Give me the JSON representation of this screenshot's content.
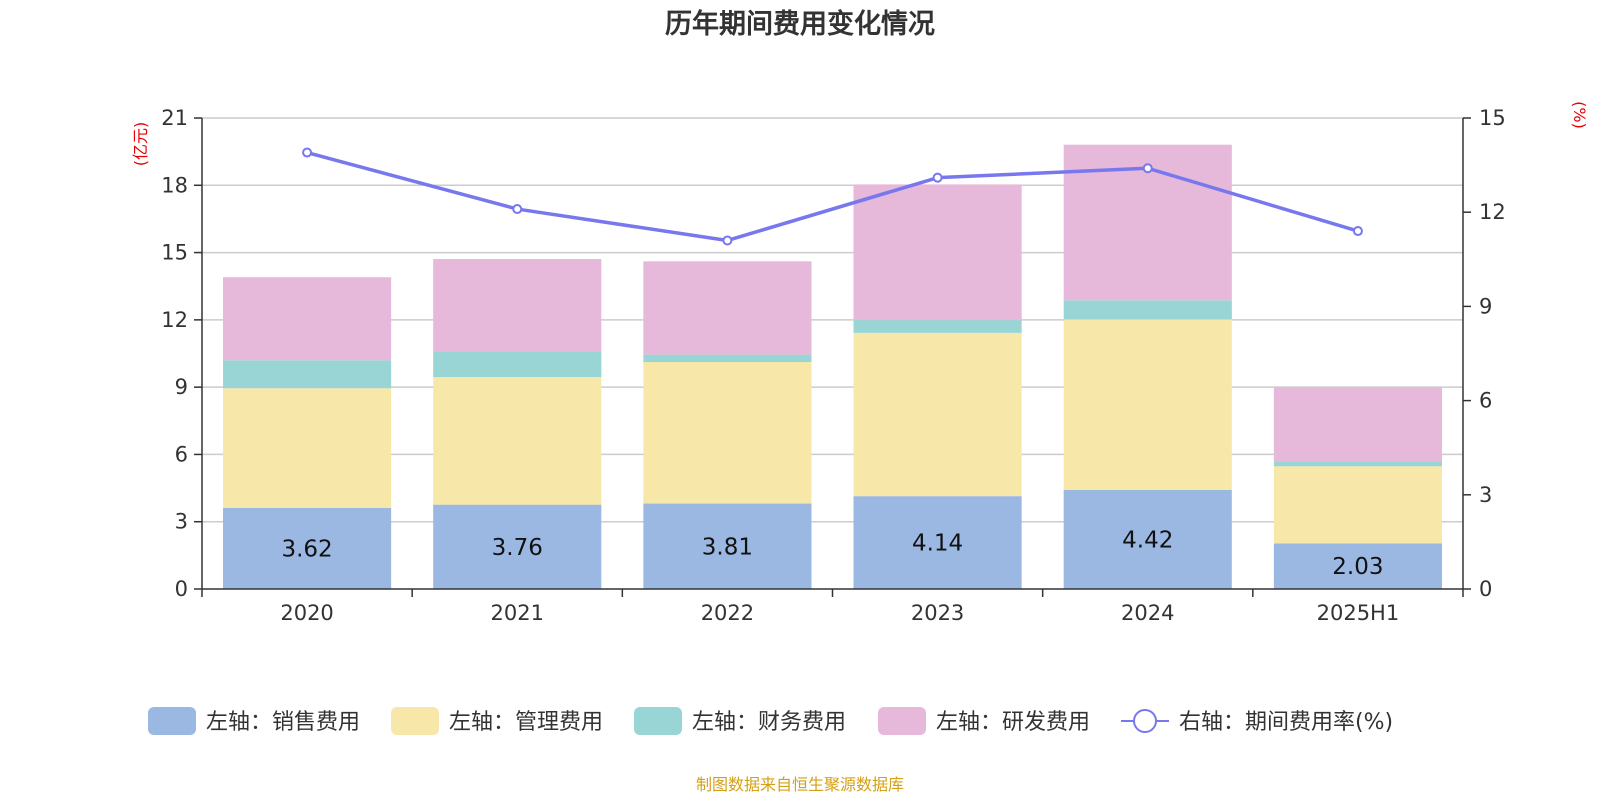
{
  "chart_data": {
    "type": "bar",
    "stacked": true,
    "title": "历年期间费用变化情况",
    "categories": [
      "2020",
      "2021",
      "2022",
      "2023",
      "2024",
      "2025H1"
    ],
    "y_left": {
      "unit": "(亿元)",
      "ylim": [
        0,
        21
      ],
      "ticks": [
        0,
        3,
        6,
        9,
        12,
        15,
        18,
        21
      ]
    },
    "y_right": {
      "unit": "(%)",
      "ylim": [
        0,
        15
      ],
      "ticks": [
        0,
        3,
        6,
        9,
        12,
        15
      ]
    },
    "grid": true,
    "legend_position": "bottom",
    "series": [
      {
        "name": "左轴：销售费用",
        "type": "bar",
        "axis": "left",
        "color": "#9bb8e3",
        "values": [
          3.62,
          3.76,
          3.81,
          4.14,
          4.42,
          2.03
        ],
        "labels": [
          "3.62",
          "3.76",
          "3.81",
          "4.14",
          "4.42",
          "2.03"
        ]
      },
      {
        "name": "左轴：管理费用",
        "type": "bar",
        "axis": "left",
        "color": "#f7e7a8",
        "values": [
          5.33,
          5.69,
          6.31,
          7.28,
          7.6,
          3.44
        ]
      },
      {
        "name": "左轴：财务费用",
        "type": "bar",
        "axis": "left",
        "color": "#98d5d4",
        "values": [
          1.25,
          1.15,
          0.33,
          0.57,
          0.85,
          0.23
        ]
      },
      {
        "name": "左轴：研发费用",
        "type": "bar",
        "axis": "left",
        "color": "#e6b8d9",
        "values": [
          3.7,
          4.11,
          4.16,
          6.05,
          6.94,
          3.3
        ]
      },
      {
        "name": "右轴：期间费用率(%)",
        "type": "line",
        "axis": "right",
        "color": "#7777ee",
        "values": [
          13.9,
          12.1,
          11.1,
          13.1,
          13.4,
          11.4
        ]
      }
    ],
    "source": "制图数据来自恒生聚源数据库"
  }
}
